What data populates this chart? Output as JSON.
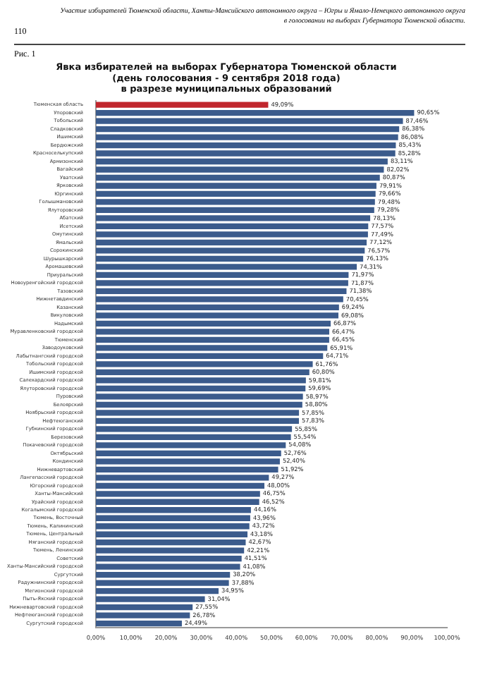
{
  "chart_data": {
    "type": "bar",
    "orientation": "horizontal",
    "title": "Явка избирателей на выборах Губернатора Тюменской области\n(день голосования - 9 сентября 2018 года)\nв разрезе муниципальных образований",
    "annotations": [
      "110",
      "Участие избирателей Тюменской области, Ханты-Мансийского автономного округа – Югры и Ямало-Ненецкого автономного округа в голосовании на выборах Губернатора Тюменской области.",
      "Рис. 1"
    ],
    "categories": [
      "Тюменская область",
      "Упоровский",
      "Тобольский",
      "Сладковский",
      "Ишимский",
      "Бердюжский",
      "Красноселькупский",
      "Армизонский",
      "Вагайский",
      "Уватский",
      "Ярковский",
      "Юргинский",
      "Голышмановский",
      "Ялуторовский",
      "Абатский",
      "Исетский",
      "Омутинский",
      "Ямальский",
      "Сорокинский",
      "Шурышкарский",
      "Аромашевский",
      "Приуральский",
      "Новоуренгойский городской",
      "Тазовский",
      "Нижнетавдинский",
      "Казанский",
      "Викуловский",
      "Надымский",
      "Муравленковский городской",
      "Тюменский",
      "Заводоуковский",
      "Лабытнангский городской",
      "Тобольский городской",
      "Ишимский городской",
      "Салехардский городской",
      "Ялуторовский городской",
      "Пуровский",
      "Белоярский",
      "Ноябрьский городской",
      "Нефтеюганский",
      "Губкинский городской",
      "Березовский",
      "Покачевский городской",
      "Октябрьский",
      "Кондинский",
      "Нижневартовский",
      "Лангепасский городской",
      "Югорский городской",
      "Ханты-Мансийский",
      "Урайский городской",
      "Когалымский городской",
      "Тюмень, Восточный",
      "Тюмень, Калининский",
      "Тюмень, Центральный",
      "Няганский городской",
      "Тюмень, Ленинский",
      "Советский",
      "Ханты-Мансийский городской",
      "Сургутский",
      "Радужнинский городской",
      "Мегионский городской",
      "Пыть-Яхский городской",
      "Нижневартовский городской",
      "Нефтеюганский городской",
      "Сургутский городской"
    ],
    "values": [
      49.09,
      90.65,
      87.46,
      86.38,
      86.08,
      85.43,
      85.28,
      83.11,
      82.02,
      80.87,
      79.91,
      79.66,
      79.48,
      79.28,
      78.13,
      77.57,
      77.49,
      77.12,
      76.57,
      76.13,
      74.31,
      71.97,
      71.87,
      71.38,
      70.45,
      69.24,
      69.08,
      66.87,
      66.47,
      66.45,
      65.91,
      64.71,
      61.76,
      60.8,
      59.81,
      59.69,
      58.97,
      58.8,
      57.85,
      57.83,
      55.85,
      55.54,
      54.08,
      52.76,
      52.4,
      51.92,
      49.27,
      48.0,
      46.75,
      46.52,
      44.16,
      43.96,
      43.72,
      43.18,
      42.67,
      42.21,
      41.51,
      41.08,
      38.2,
      37.88,
      34.95,
      31.04,
      27.55,
      26.78,
      24.49
    ],
    "value_labels": [
      "49,09%",
      "90,65%",
      "87,46%",
      "86,38%",
      "86,08%",
      "85,43%",
      "85,28%",
      "83,11%",
      "82,02%",
      "80,87%",
      "79,91%",
      "79,66%",
      "79,48%",
      "79,28%",
      "78,13%",
      "77,57%",
      "77,49%",
      "77,12%",
      "76,57%",
      "76,13%",
      "74,31%",
      "71,97%",
      "71,87%",
      "71,38%",
      "70,45%",
      "69,24%",
      "69,08%",
      "66,87%",
      "66,47%",
      "66,45%",
      "65,91%",
      "64,71%",
      "61,76%",
      "60,80%",
      "59,81%",
      "59,69%",
      "58,97%",
      "58,80%",
      "57,85%",
      "57,83%",
      "55,85%",
      "55,54%",
      "54,08%",
      "52,76%",
      "52,40%",
      "51,92%",
      "49,27%",
      "48,00%",
      "46,75%",
      "46,52%",
      "44,16%",
      "43,96%",
      "43,72%",
      "43,18%",
      "42,67%",
      "42,21%",
      "41,51%",
      "41,08%",
      "38,20%",
      "37,88%",
      "34,95%",
      "31,04%",
      "27,55%",
      "26,78%",
      "24,49%"
    ],
    "colors": [
      "#c0262d",
      "#3b5b8c",
      "#3b5b8c",
      "#3b5b8c",
      "#3b5b8c",
      "#3b5b8c",
      "#3b5b8c",
      "#3b5b8c",
      "#3b5b8c",
      "#3b5b8c",
      "#3b5b8c",
      "#3b5b8c",
      "#3b5b8c",
      "#3b5b8c",
      "#3b5b8c",
      "#3b5b8c",
      "#3b5b8c",
      "#3b5b8c",
      "#3b5b8c",
      "#3b5b8c",
      "#3b5b8c",
      "#3b5b8c",
      "#3b5b8c",
      "#3b5b8c",
      "#3b5b8c",
      "#3b5b8c",
      "#3b5b8c",
      "#3b5b8c",
      "#3b5b8c",
      "#3b5b8c",
      "#3b5b8c",
      "#3b5b8c",
      "#3b5b8c",
      "#3b5b8c",
      "#3b5b8c",
      "#3b5b8c",
      "#3b5b8c",
      "#3b5b8c",
      "#3b5b8c",
      "#3b5b8c",
      "#3b5b8c",
      "#3b5b8c",
      "#3b5b8c",
      "#3b5b8c",
      "#3b5b8c",
      "#3b5b8c",
      "#3b5b8c",
      "#3b5b8c",
      "#3b5b8c",
      "#3b5b8c",
      "#3b5b8c",
      "#3b5b8c",
      "#3b5b8c",
      "#3b5b8c",
      "#3b5b8c",
      "#3b5b8c",
      "#3b5b8c",
      "#3b5b8c",
      "#3b5b8c",
      "#3b5b8c",
      "#3b5b8c",
      "#3b5b8c",
      "#3b5b8c",
      "#3b5b8c",
      "#3b5b8c"
    ],
    "xlim": [
      0,
      100
    ],
    "xticks": [
      {
        "value": 0,
        "label": "0,00%"
      },
      {
        "value": 10,
        "label": "10,00%"
      },
      {
        "value": 20,
        "label": "20,00%"
      },
      {
        "value": 30,
        "label": "30,00%"
      },
      {
        "value": 40,
        "label": "40,00%"
      },
      {
        "value": 50,
        "label": "50,00%"
      },
      {
        "value": 60,
        "label": "60,00%"
      },
      {
        "value": 70,
        "label": "70,00%"
      },
      {
        "value": 80,
        "label": "80,00%"
      },
      {
        "value": 90,
        "label": "90,00%"
      },
      {
        "value": 100,
        "label": "100,00%"
      }
    ],
    "grid": false,
    "legend": false
  }
}
